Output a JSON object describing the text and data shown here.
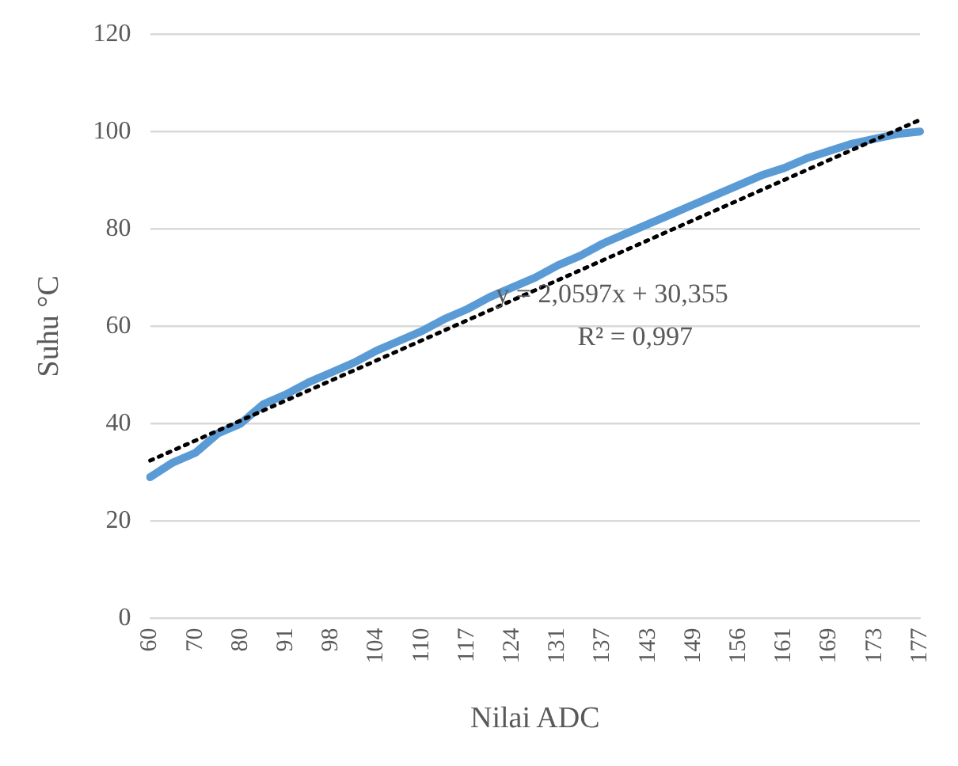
{
  "chart_data": {
    "type": "line",
    "xlabel": "Nilai ADC",
    "ylabel": "Suhu °C",
    "categories": [
      "60",
      null,
      "70",
      null,
      "80",
      null,
      "91",
      null,
      "98",
      null,
      "104",
      null,
      "110",
      null,
      "117",
      null,
      "124",
      null,
      "131",
      null,
      "137",
      null,
      "143",
      null,
      "149",
      null,
      "156",
      null,
      "161",
      null,
      "169",
      null,
      "173",
      null,
      "177"
    ],
    "series": [
      {
        "color": "#5b9bd5",
        "values": [
          29,
          32,
          34,
          38,
          40,
          44,
          46,
          48.5,
          50.5,
          52.5,
          55,
          57,
          59,
          61.5,
          63.5,
          66,
          68,
          70,
          72.5,
          74.5,
          77,
          79,
          81,
          83,
          85,
          87,
          89,
          91,
          92.5,
          94.5,
          96,
          97.5,
          98.5,
          99.5,
          100
        ]
      },
      {
        "type": "line",
        "color": "#000000",
        "line_style": "dotted",
        "x": [
          "60",
          "177"
        ],
        "values": [
          32.4,
          102.4
        ]
      }
    ],
    "ylim": [
      0,
      120
    ],
    "yticks": [
      0,
      20,
      40,
      60,
      80,
      100,
      120
    ],
    "grid": "y",
    "legend": false,
    "marker": "none",
    "line_style": "solid",
    "annotations": [
      "y = 2,0597x + 30,355",
      "R² = 0,997"
    ]
  }
}
